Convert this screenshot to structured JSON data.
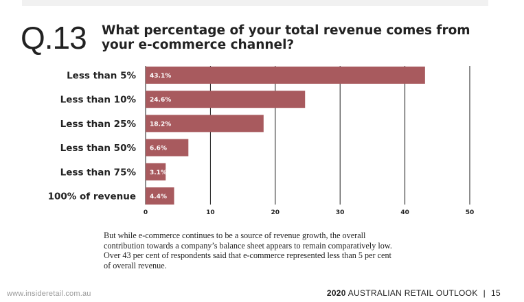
{
  "header": {
    "question_number": "Q.13",
    "question_text": "What percentage of your total revenue comes from your e-commerce channel?"
  },
  "chart_data": {
    "type": "bar",
    "orientation": "horizontal",
    "categories": [
      "Less than 5%",
      "Less than 10%",
      "Less than 25%",
      "Less than 50%",
      "Less than 75%",
      "100% of revenue"
    ],
    "values": [
      43.1,
      24.6,
      18.2,
      6.6,
      3.1,
      4.4
    ],
    "value_labels": [
      "43.1%",
      "24.6%",
      "18.2%",
      "6.6%",
      "3.1%",
      "4.4%"
    ],
    "xlim": [
      0,
      50
    ],
    "xticks": [
      0,
      10,
      20,
      30,
      40,
      50
    ],
    "grid": "vertical",
    "bar_color": "#a85a5e",
    "grid_color": "#1a1a1a"
  },
  "caption": "But while e-commerce continues to be a source of revenue growth, the overall contribution towards a company’s balance sheet appears to remain comparatively low. Over 43 per cent of respondents said that e-commerce represented less than 5 per cent of overall revenue.",
  "footer": {
    "website": "www.insideretail.com.au",
    "year": "2020",
    "publication": "AUSTRALIAN RETAIL OUTLOOK",
    "page_number": "15"
  }
}
